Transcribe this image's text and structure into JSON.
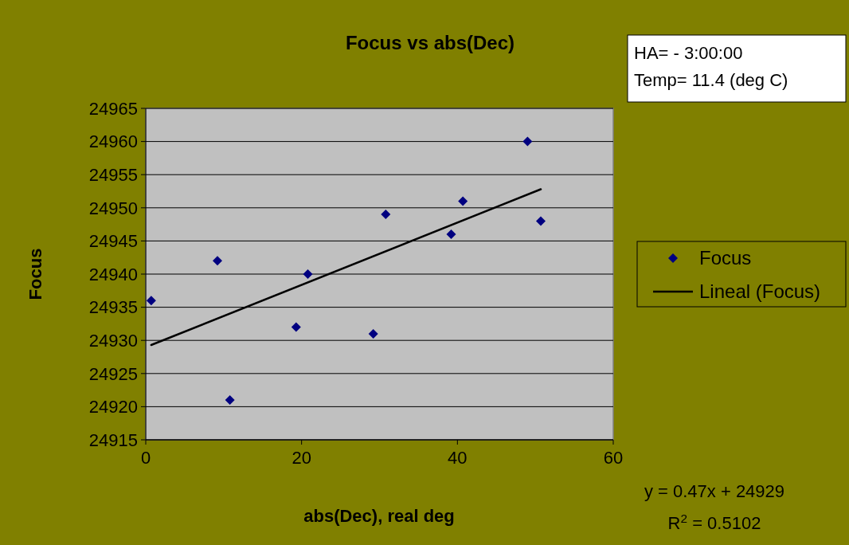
{
  "chart_data": {
    "type": "scatter",
    "title": "Focus vs abs(Dec)",
    "xlabel": "abs(Dec), real deg",
    "ylabel": "Focus",
    "xlim": [
      0,
      60
    ],
    "xticks": [
      0,
      20,
      40,
      60
    ],
    "ylim": [
      24915,
      24965
    ],
    "yticks": [
      24915,
      24920,
      24925,
      24930,
      24935,
      24940,
      24945,
      24950,
      24955,
      24960,
      24965
    ],
    "grid": "y",
    "legend": "right",
    "marker": "diamond",
    "series": [
      {
        "name": "Focus",
        "color": "#000080",
        "x": [
          0.7,
          9.2,
          10.8,
          19.3,
          20.8,
          29.2,
          30.8,
          39.2,
          40.7,
          49.0,
          50.7
        ],
        "values": [
          24936,
          24942,
          24921,
          24932,
          24940,
          24931,
          24949,
          24946,
          24951,
          24960,
          24948
        ]
      },
      {
        "name": "Lineal (Focus)",
        "type": "line",
        "color": "#000000",
        "marker": "none",
        "x": [
          0.7,
          50.7
        ],
        "values": [
          24929.3,
          24952.8
        ]
      }
    ],
    "annotations": [
      "HA= - 3:00:00",
      "Temp= 11.4 (deg C)",
      "y = 0.47x + 24929",
      "R$^{2}$ = 0.5102"
    ]
  }
}
